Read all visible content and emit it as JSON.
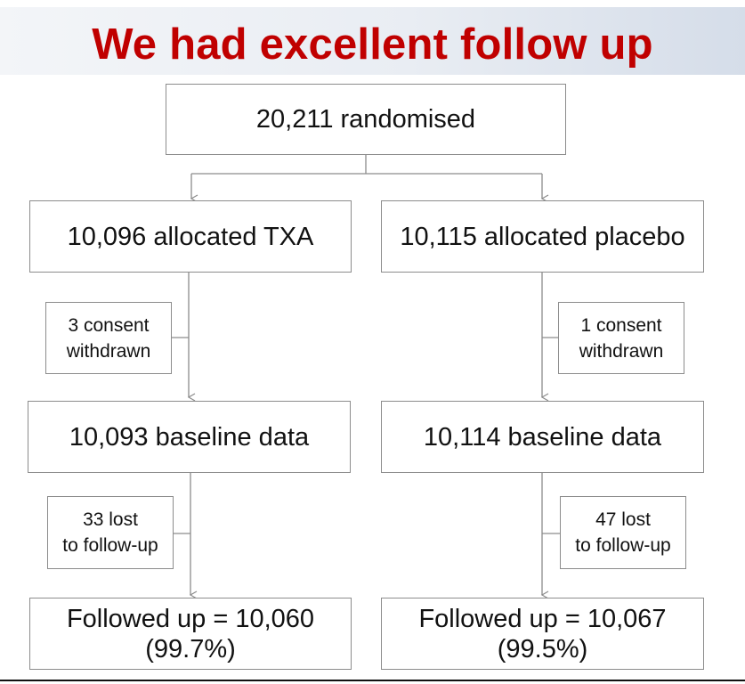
{
  "title": "We had excellent follow up",
  "randomised": "20,211 randomised",
  "arms": {
    "txa": {
      "allocated": "10,096 allocated TXA",
      "withdrawn_line1": "3 consent",
      "withdrawn_line2": "withdrawn",
      "baseline": "10,093 baseline data",
      "lost_line1": "33 lost",
      "lost_line2": "to follow-up",
      "followed_line1": "Followed up = 10,060",
      "followed_line2": "(99.7%)"
    },
    "placebo": {
      "allocated": "10,115 allocated placebo",
      "withdrawn_line1": "1 consent",
      "withdrawn_line2": "withdrawn",
      "baseline": "10,114 baseline data",
      "lost_line1": "47 lost",
      "lost_line2": "to follow-up",
      "followed_line1": "Followed up = 10,067",
      "followed_line2": "(99.5%)"
    }
  },
  "colors": {
    "title": "#c00000",
    "border": "#8c8c8c",
    "connector": "#8c8c8c"
  }
}
